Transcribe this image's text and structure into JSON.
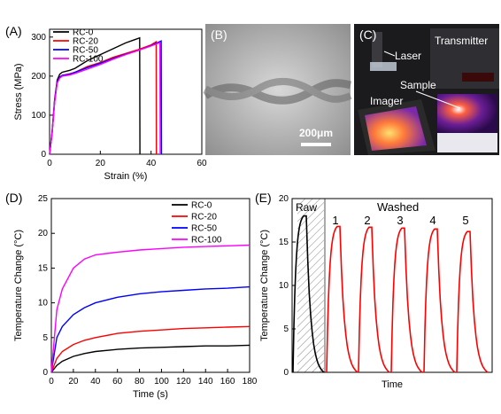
{
  "panels": {
    "A": {
      "tag": "(A)"
    },
    "B": {
      "tag": "(B)",
      "scale_label": "200μm"
    },
    "C": {
      "tag": "(C)",
      "labels": {
        "laser": "Laser",
        "transmitter": "Transmitter",
        "sample": "Sample",
        "imager": "Imager"
      }
    },
    "D": {
      "tag": "(D)"
    },
    "E": {
      "tag": "(E)",
      "raw_label": "Raw",
      "washed_label": "Washed",
      "cycle_labels": [
        "1",
        "2",
        "3",
        "4",
        "5"
      ]
    }
  },
  "colors": {
    "RC-0": "#000000",
    "RC-20": "#ff0000",
    "RC-50": "#0000ff",
    "RC-100": "#ff00ff"
  },
  "chart_data": [
    {
      "id": "A",
      "type": "line",
      "xlabel": "Strain (%)",
      "ylabel": "Stress (MPa)",
      "xlim": [
        0,
        60
      ],
      "ylim": [
        0,
        320
      ],
      "xticks": [
        0,
        20,
        40,
        60
      ],
      "yticks": [
        0,
        100,
        200,
        300
      ],
      "legend": "top-left",
      "series": [
        {
          "name": "RC-0",
          "color": "#000000",
          "x": [
            0,
            1,
            2,
            3,
            4,
            5,
            8,
            10,
            15,
            20,
            25,
            30,
            33,
            35.5,
            35.6
          ],
          "y": [
            0,
            60,
            140,
            190,
            205,
            210,
            215,
            220,
            240,
            255,
            270,
            285,
            292,
            298,
            0
          ]
        },
        {
          "name": "RC-20",
          "color": "#ff0000",
          "x": [
            0,
            1,
            2,
            3,
            4,
            5,
            8,
            10,
            15,
            20,
            25,
            30,
            35,
            40,
            42,
            42.1
          ],
          "y": [
            0,
            55,
            135,
            185,
            198,
            202,
            206,
            210,
            225,
            235,
            248,
            258,
            268,
            280,
            288,
            0
          ]
        },
        {
          "name": "RC-50",
          "color": "#0000ff",
          "x": [
            0,
            1,
            2,
            3,
            4,
            5,
            8,
            10,
            15,
            20,
            25,
            30,
            35,
            40,
            44,
            44.1
          ],
          "y": [
            0,
            55,
            135,
            185,
            198,
            202,
            205,
            210,
            222,
            233,
            245,
            256,
            266,
            278,
            290,
            0
          ]
        },
        {
          "name": "RC-100",
          "color": "#ff00ff",
          "x": [
            0,
            1,
            2,
            3,
            4,
            5,
            8,
            10,
            15,
            20,
            25,
            30,
            35,
            40,
            43.5,
            43.6
          ],
          "y": [
            0,
            55,
            132,
            182,
            195,
            200,
            203,
            207,
            218,
            230,
            243,
            255,
            266,
            277,
            286,
            0
          ]
        }
      ]
    },
    {
      "id": "D",
      "type": "line",
      "xlabel": "Time (s)",
      "ylabel": "Temperature Change (°C)",
      "xlim": [
        0,
        180
      ],
      "ylim": [
        0,
        25
      ],
      "xticks": [
        0,
        20,
        40,
        60,
        80,
        100,
        120,
        140,
        160,
        180
      ],
      "yticks": [
        0,
        5,
        10,
        15,
        20,
        25
      ],
      "legend": "top-right",
      "series": [
        {
          "name": "RC-0",
          "color": "#000000",
          "x": [
            0,
            5,
            10,
            20,
            30,
            40,
            60,
            80,
            100,
            120,
            140,
            160,
            180
          ],
          "y": [
            0,
            1,
            1.6,
            2.3,
            2.7,
            3.0,
            3.3,
            3.5,
            3.6,
            3.7,
            3.8,
            3.8,
            3.9
          ]
        },
        {
          "name": "RC-20",
          "color": "#ff0000",
          "x": [
            0,
            5,
            10,
            20,
            30,
            40,
            60,
            80,
            100,
            120,
            140,
            160,
            180
          ],
          "y": [
            0,
            2,
            3,
            4.0,
            4.6,
            5.0,
            5.6,
            5.9,
            6.1,
            6.3,
            6.4,
            6.5,
            6.6
          ]
        },
        {
          "name": "RC-50",
          "color": "#0000ff",
          "x": [
            0,
            5,
            10,
            20,
            30,
            40,
            60,
            80,
            100,
            120,
            140,
            160,
            180
          ],
          "y": [
            0,
            5,
            6.6,
            8.3,
            9.3,
            10.0,
            10.8,
            11.3,
            11.6,
            11.8,
            12.0,
            12.1,
            12.3
          ]
        },
        {
          "name": "RC-100",
          "color": "#ff00ff",
          "x": [
            0,
            5,
            10,
            20,
            30,
            40,
            60,
            80,
            100,
            120,
            140,
            160,
            180
          ],
          "y": [
            0,
            9,
            12,
            15.0,
            16.3,
            16.9,
            17.3,
            17.6,
            17.8,
            18.0,
            18.1,
            18.2,
            18.3
          ]
        }
      ]
    },
    {
      "id": "E",
      "type": "line",
      "xlabel": "Time",
      "ylabel": "Temperature Change (°C)",
      "ylim": [
        0,
        20
      ],
      "yticks": [
        0,
        5,
        10,
        15,
        20
      ],
      "cycles": [
        {
          "label": "Raw",
          "color": "#000000",
          "peak": 18.0
        },
        {
          "label": "1",
          "color": "#ff0000",
          "peak": 16.8
        },
        {
          "label": "2",
          "color": "#ff0000",
          "peak": 16.7
        },
        {
          "label": "3",
          "color": "#ff0000",
          "peak": 16.6
        },
        {
          "label": "4",
          "color": "#ff0000",
          "peak": 16.5
        },
        {
          "label": "5",
          "color": "#ff0000",
          "peak": 16.2
        }
      ]
    }
  ]
}
